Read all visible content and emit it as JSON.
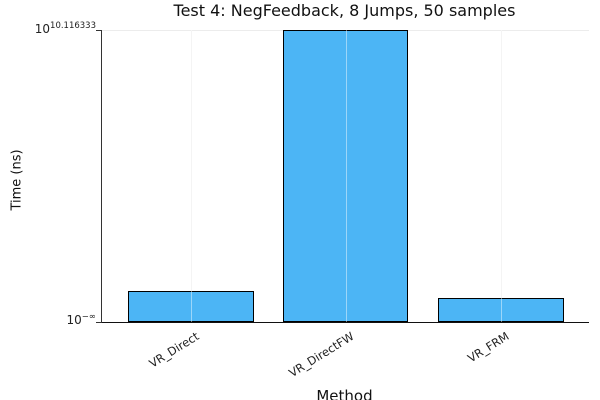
{
  "chart_data": {
    "type": "bar",
    "title": "Test 4: NegFeedback, 8 Jumps, 50 samples",
    "xlabel": "Method",
    "ylabel": "Time (ns)",
    "categories": [
      "VR_Direct",
      "VR_DirectFW",
      "VR_FRM"
    ],
    "series": [
      {
        "name": "Time (ns)",
        "relative_heights": [
          0.106,
          1.0,
          0.082
        ]
      }
    ],
    "y_axis": {
      "scale": "log10",
      "ticks": [
        {
          "base": "10",
          "exp": "10.116333",
          "position": "top"
        },
        {
          "base": "10",
          "exp": "−∞",
          "position": "bottom"
        }
      ],
      "top_tick_value_ns": 13072000000
    },
    "grid": true,
    "legend": false,
    "bar_color": "#4cb5f5",
    "bar_border_color": "#000000"
  }
}
